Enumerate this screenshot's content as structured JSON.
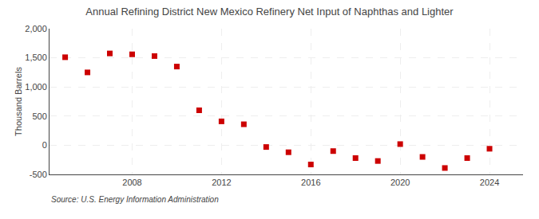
{
  "chart_data": {
    "type": "scatter",
    "title": "Annual Refining District New Mexico Refinery Net Input of Naphthas and Lighter",
    "ylabel": "Thousand Barrels",
    "annotations": [
      "Source: U.S. Energy Information Administration"
    ],
    "x": [
      2005,
      2006,
      2007,
      2008,
      2009,
      2010,
      2011,
      2012,
      2013,
      2014,
      2015,
      2016,
      2017,
      2018,
      2019,
      2020,
      2021,
      2022,
      2023,
      2024
    ],
    "values": [
      1510,
      1250,
      1575,
      1560,
      1530,
      1350,
      600,
      410,
      360,
      -30,
      -120,
      -330,
      -100,
      -220,
      -270,
      20,
      -200,
      -390,
      -220,
      -60
    ],
    "color": "#cc0000",
    "marker": "square",
    "xlim": [
      2004.3,
      2025.5
    ],
    "xticks": [
      2008,
      2012,
      2016,
      2020,
      2024
    ],
    "ylim": [
      -500,
      2000
    ],
    "yticks": [
      -500,
      0,
      500,
      {
        "value": 1000,
        "label": "1,000"
      },
      {
        "value": 1500,
        "label": "1,500"
      },
      {
        "value": 2000,
        "label": "2,000"
      }
    ],
    "grid": true
  }
}
